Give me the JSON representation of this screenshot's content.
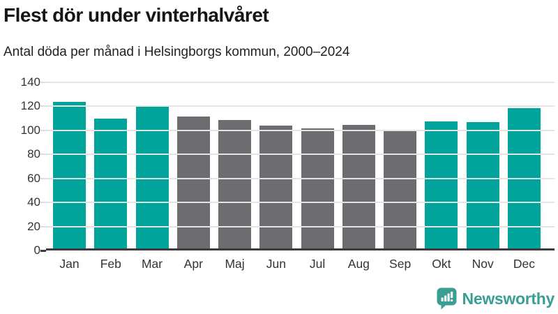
{
  "title": "Flest dör under vinterhalvåret",
  "subtitle": "Antal döda per månad i Helsingborgs kommun, 2000–2024",
  "footer": {
    "brand": "Newsworthy",
    "logo_icon": "newsworthy-bubble-barchart-icon"
  },
  "colors": {
    "highlight": "#00a49b",
    "muted": "#6d6d71",
    "brand": "#3a9e94",
    "gridline": "#e4e4e4",
    "axis": "#3d3d3d",
    "title_text": "#161616",
    "tick_text": "#333333"
  },
  "chart_data": {
    "type": "bar",
    "title": "Flest dör under vinterhalvåret",
    "subtitle": "Antal döda per månad i Helsingborgs kommun, 2000–2024",
    "categories": [
      "Jan",
      "Feb",
      "Mar",
      "Apr",
      "Maj",
      "Jun",
      "Jul",
      "Aug",
      "Sep",
      "Okt",
      "Nov",
      "Dec"
    ],
    "values": [
      122,
      108,
      119,
      110,
      107,
      102,
      100,
      103,
      98,
      106,
      105,
      117
    ],
    "bar_colors": [
      "highlight",
      "highlight",
      "highlight",
      "muted",
      "muted",
      "muted",
      "muted",
      "muted",
      "muted",
      "highlight",
      "highlight",
      "highlight"
    ],
    "highlight_months_meaning": "winter half-year (teal), summer half-year (gray)",
    "yticks": [
      0,
      20,
      40,
      60,
      80,
      100,
      120,
      140
    ],
    "ylim": [
      0,
      140
    ],
    "xlabel": "",
    "ylabel": "",
    "grid": true,
    "legend": false
  }
}
